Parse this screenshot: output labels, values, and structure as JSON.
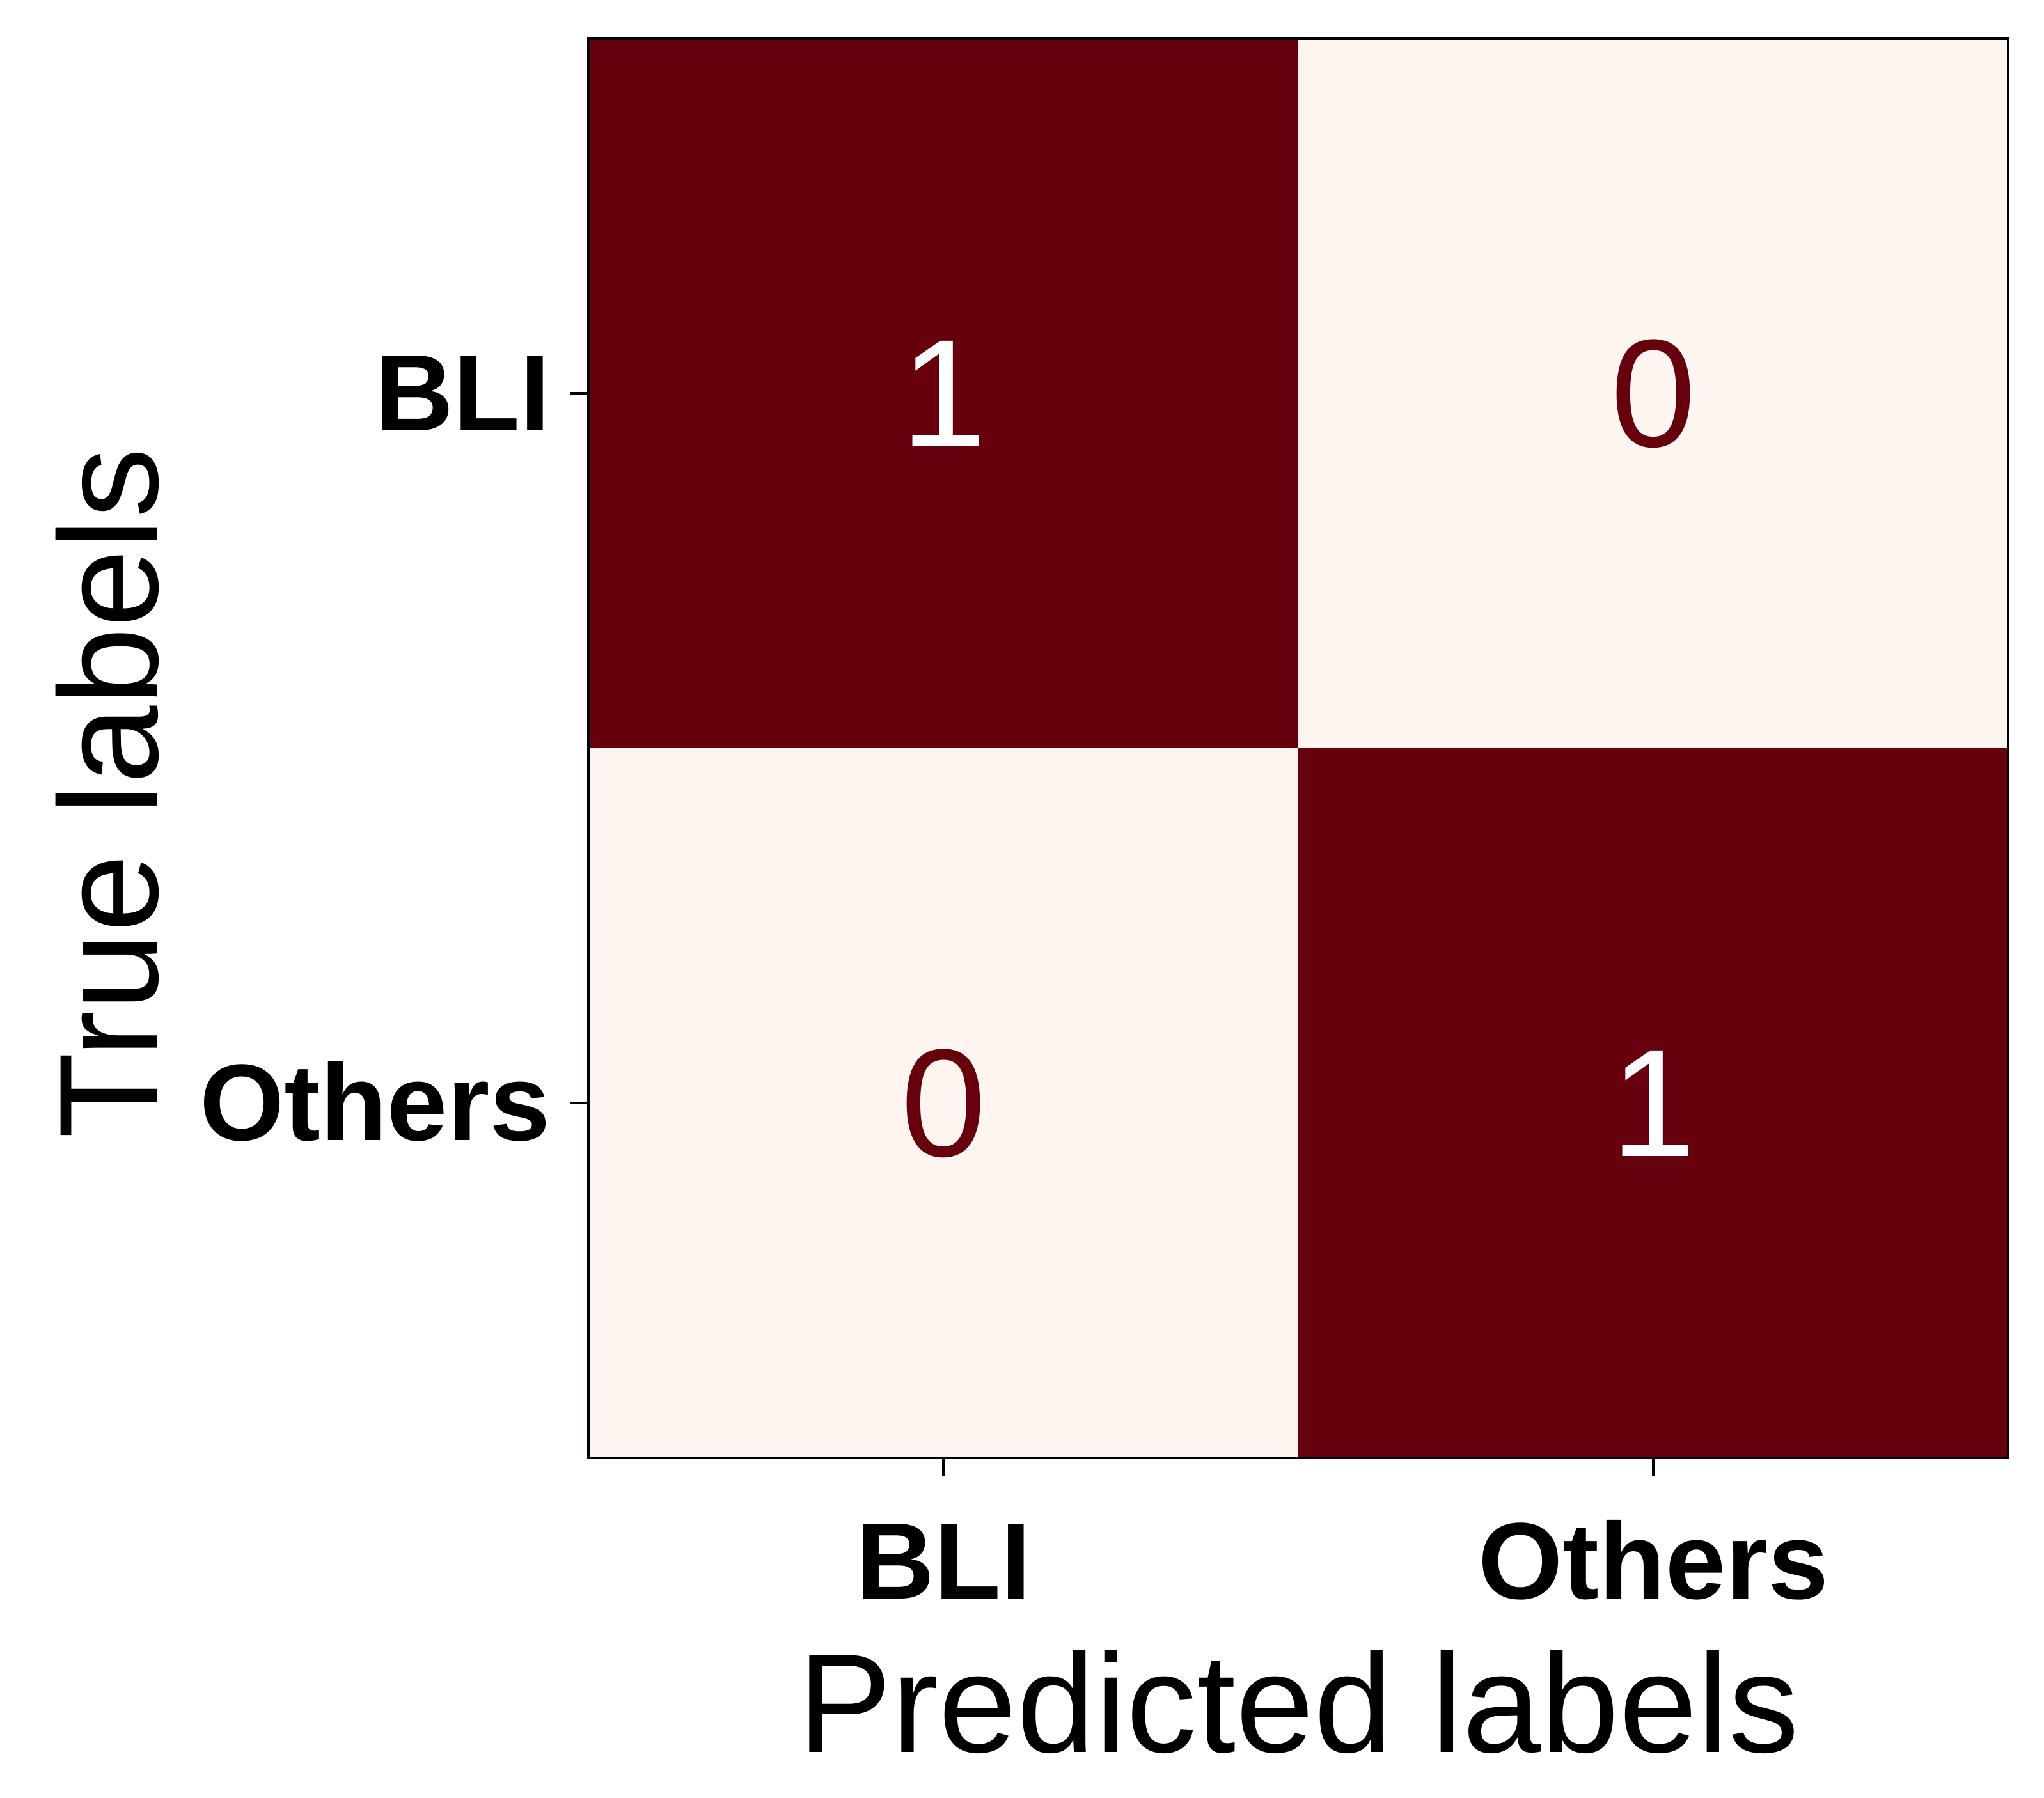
{
  "chart_data": {
    "type": "heatmap",
    "title": "",
    "xlabel": "Predicted labels",
    "ylabel": "True labels",
    "x_categories": [
      "BLI",
      "Others"
    ],
    "y_categories": [
      "BLI",
      "Others"
    ],
    "values": [
      [
        1,
        0
      ],
      [
        0,
        1
      ]
    ],
    "color_low": "#fff5f0",
    "color_high": "#67000d",
    "text_on_dark": "#ffffff",
    "text_on_light": "#67000d",
    "grid": false,
    "legend": "none"
  }
}
